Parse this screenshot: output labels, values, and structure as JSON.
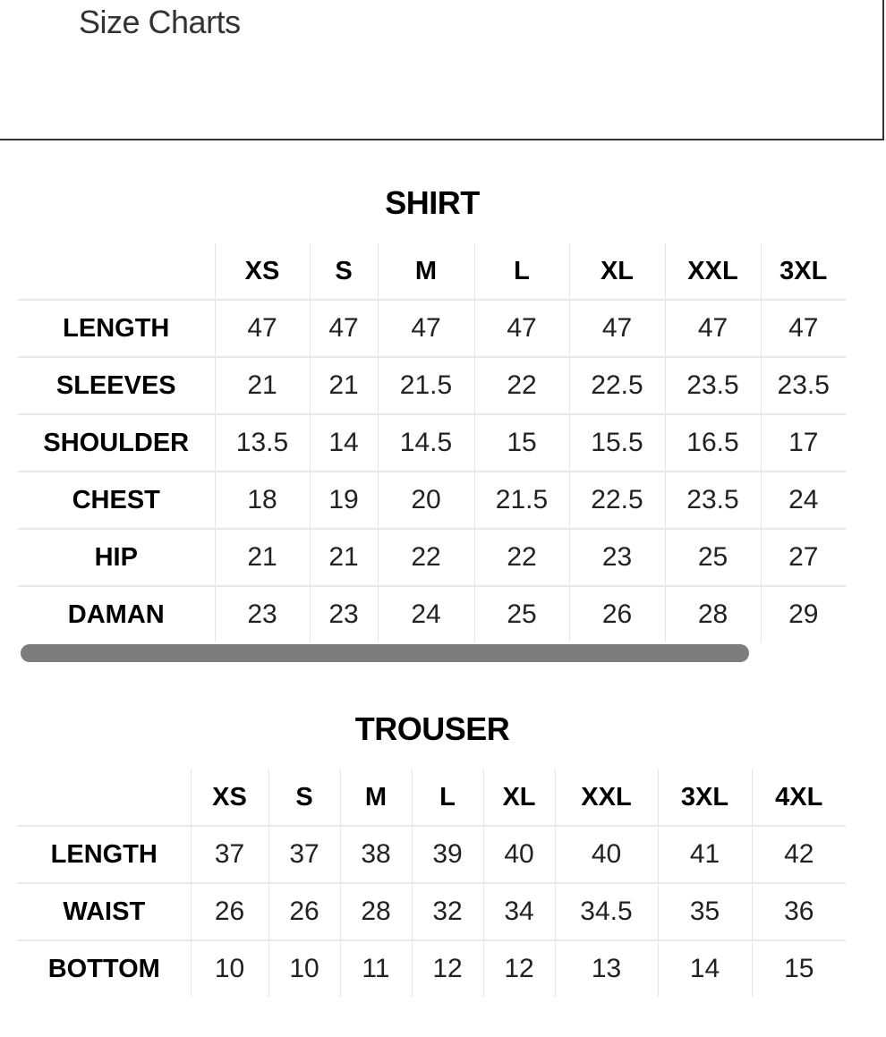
{
  "page": {
    "title": "Size Charts"
  },
  "shirt": {
    "heading": "SHIRT",
    "sizes": [
      "XS",
      "S",
      "M",
      "L",
      "XL",
      "XXL",
      "3XL"
    ],
    "rows": [
      {
        "label": "LENGTH",
        "values": [
          "47",
          "47",
          "47",
          "47",
          "47",
          "47",
          "47"
        ]
      },
      {
        "label": "SLEEVES",
        "values": [
          "21",
          "21",
          "21.5",
          "22",
          "22.5",
          "23.5",
          "23.5"
        ]
      },
      {
        "label": "SHOULDER",
        "values": [
          "13.5",
          "14",
          "14.5",
          "15",
          "15.5",
          "16.5",
          "17"
        ]
      },
      {
        "label": "CHEST",
        "values": [
          "18",
          "19",
          "20",
          "21.5",
          "22.5",
          "23.5",
          "24"
        ]
      },
      {
        "label": "HIP",
        "values": [
          "21",
          "21",
          "22",
          "22",
          "23",
          "25",
          "27"
        ]
      },
      {
        "label": "DAMAN",
        "values": [
          "23",
          "23",
          "24",
          "25",
          "26",
          "28",
          "29"
        ]
      }
    ]
  },
  "trouser": {
    "heading": "TROUSER",
    "sizes": [
      "XS",
      "S",
      "M",
      "L",
      "XL",
      "XXL",
      "3XL",
      "4XL"
    ],
    "rows": [
      {
        "label": "LENGTH",
        "values": [
          "37",
          "37",
          "38",
          "39",
          "40",
          "40",
          "41",
          "42"
        ]
      },
      {
        "label": "WAIST",
        "values": [
          "26",
          "26",
          "28",
          "32",
          "34",
          "34.5",
          "35",
          "36"
        ]
      },
      {
        "label": "BOTTOM",
        "values": [
          "10",
          "10",
          "11",
          "12",
          "12",
          "13",
          "14",
          "15"
        ]
      }
    ]
  }
}
